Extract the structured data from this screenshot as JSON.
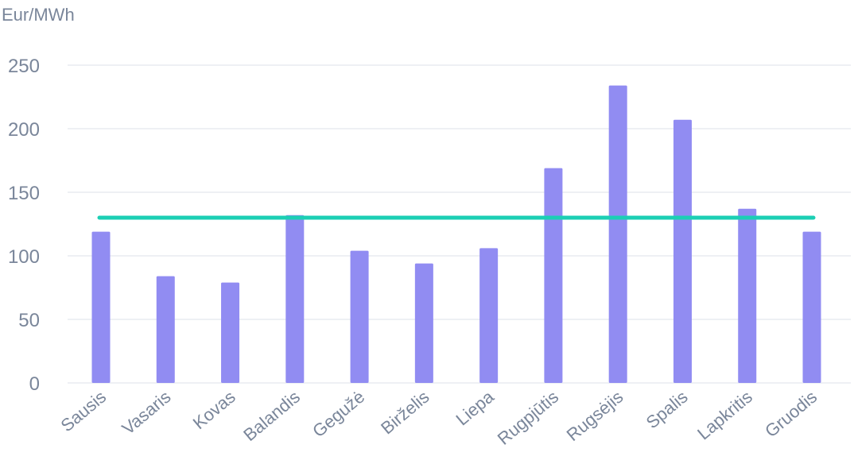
{
  "chart_data": {
    "type": "bar",
    "ylabel": "Eur/MWh",
    "xlabel": "",
    "ylim": [
      0,
      250
    ],
    "yticks": [
      0,
      50,
      100,
      150,
      200,
      250
    ],
    "grid": true,
    "categories": [
      "Sausis",
      "Vasaris",
      "Kovas",
      "Balandis",
      "Gegužė",
      "Birželis",
      "Liepa",
      "Rugpjūtis",
      "Rugsėjis",
      "Spalis",
      "Lapkritis",
      "Gruodis"
    ],
    "series": [
      {
        "values": [
          119,
          84,
          79,
          132,
          104,
          94,
          106,
          169,
          234,
          207,
          137,
          119
        ],
        "color": "#918cf2"
      }
    ],
    "average_line": {
      "value": 130,
      "color": "#1ccfb4"
    }
  }
}
